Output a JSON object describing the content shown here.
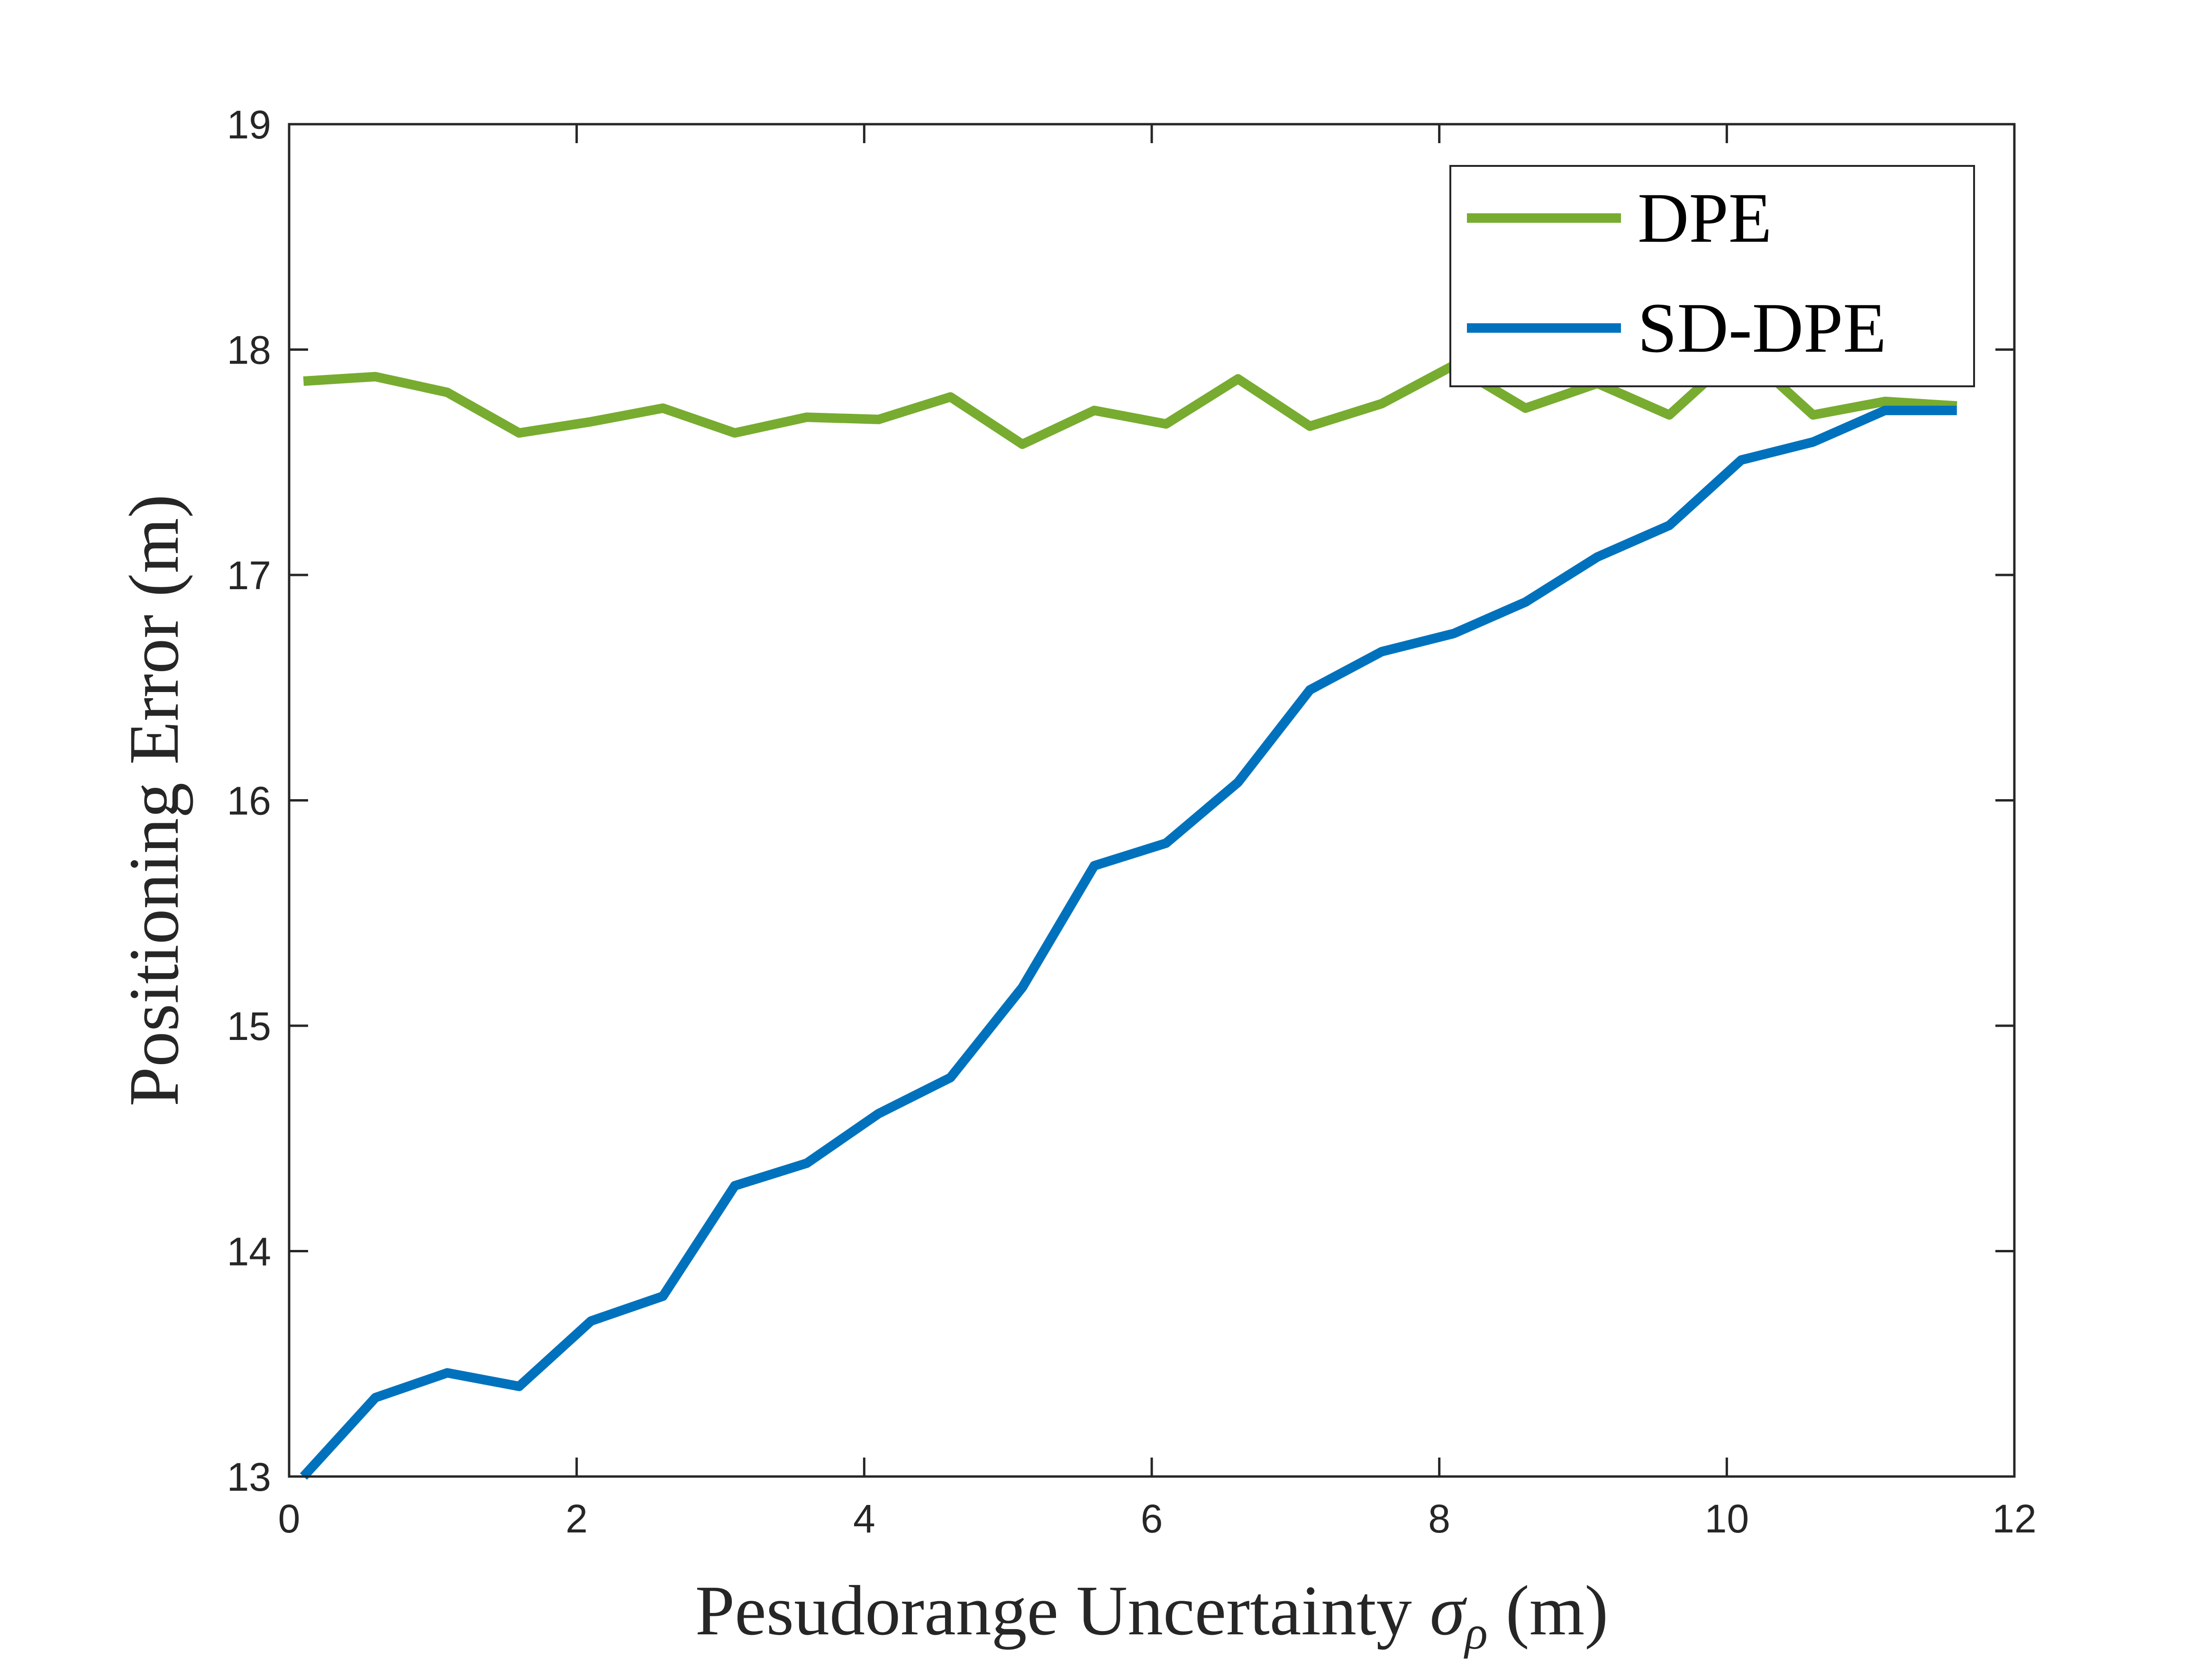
{
  "chart_data": {
    "type": "line",
    "title": "",
    "xlabel": "Pesudorange Uncertainty",
    "xlabel_symbol": "σ",
    "xlabel_subscript": "ρ",
    "xlabel_unit": "(m)",
    "ylabel": "Positioning Error (m)",
    "xlim": [
      0,
      12
    ],
    "ylim": [
      13,
      19
    ],
    "xticks": [
      "0",
      "2",
      "4",
      "6",
      "8",
      "10",
      "12"
    ],
    "yticks": [
      "13",
      "14",
      "15",
      "16",
      "17",
      "18",
      "19"
    ],
    "grid": false,
    "legend_position": "top-right",
    "x": [
      0.1,
      0.6,
      1.1,
      1.6,
      2.1,
      2.6,
      3.1,
      3.6,
      4.1,
      4.6,
      5.1,
      5.6,
      6.1,
      6.6,
      7.1,
      7.6,
      8.1,
      8.6,
      9.1,
      9.6,
      10.1,
      10.6,
      11.1,
      11.6
    ],
    "series": [
      {
        "name": "DPE",
        "color": "#77AC30",
        "values": [
          17.86,
          17.88,
          17.81,
          17.63,
          17.68,
          17.74,
          17.63,
          17.7,
          17.69,
          17.79,
          17.58,
          17.73,
          17.67,
          17.87,
          17.66,
          17.76,
          17.93,
          17.74,
          17.85,
          17.71,
          18.0,
          17.71,
          17.77,
          17.75
        ]
      },
      {
        "name": "SD-DPE",
        "color": "#0072BD",
        "values": [
          13.0,
          13.35,
          13.46,
          13.4,
          13.69,
          13.8,
          14.29,
          14.39,
          14.61,
          14.77,
          15.17,
          15.71,
          15.81,
          16.08,
          16.49,
          16.66,
          16.74,
          16.88,
          17.08,
          17.22,
          17.51,
          17.59,
          17.73,
          17.73
        ]
      }
    ]
  }
}
